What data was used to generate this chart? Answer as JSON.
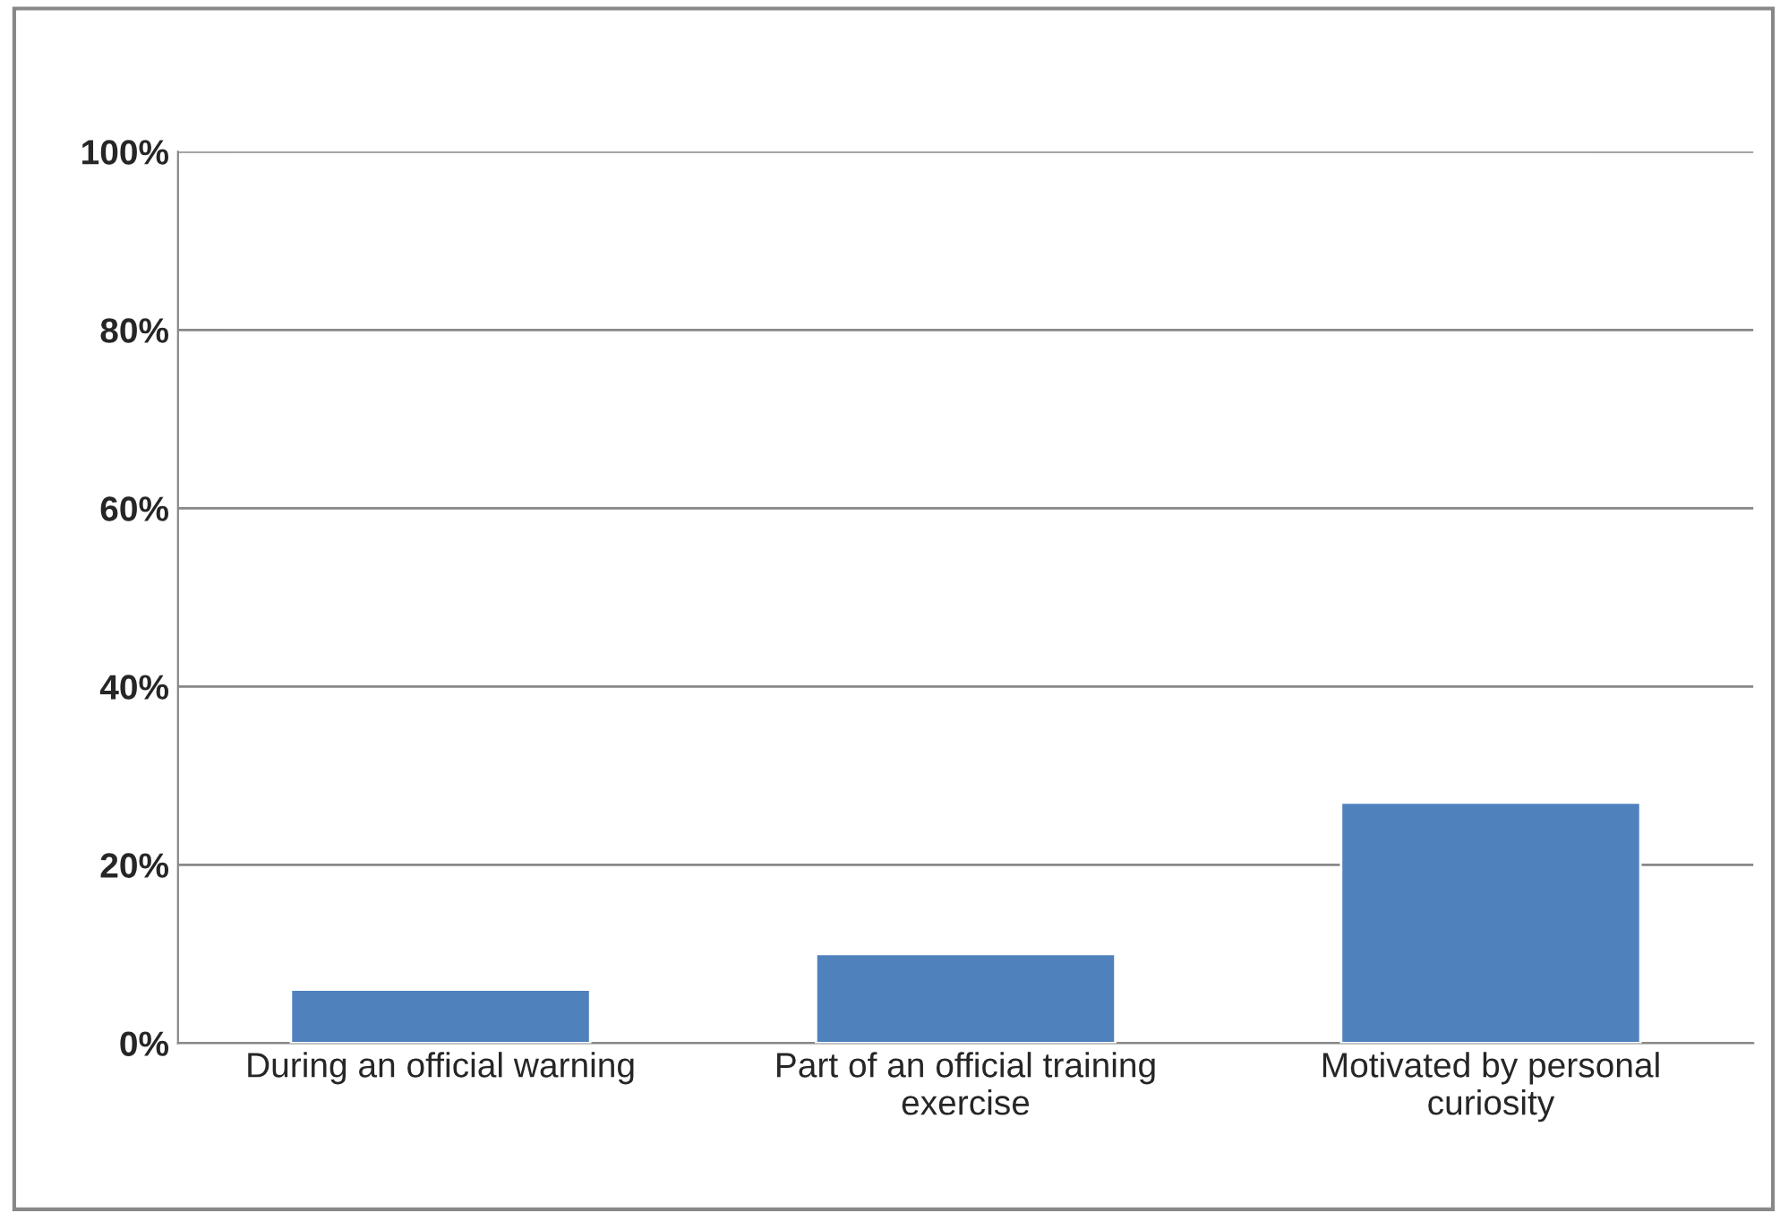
{
  "chart_data": {
    "type": "bar",
    "categories": [
      "During an official warning",
      "Part of an official training\nexercise",
      "Motivated by personal\ncuriosity"
    ],
    "values": [
      6,
      10,
      27
    ],
    "color": "#4f81bd",
    "ylim": [
      0,
      100
    ],
    "yticks": [
      {
        "value": 0,
        "label": "0%"
      },
      {
        "value": 20,
        "label": "20%"
      },
      {
        "value": 40,
        "label": "40%"
      },
      {
        "value": 60,
        "label": "60%"
      },
      {
        "value": 80,
        "label": "80%"
      },
      {
        "value": 100,
        "label": "100%"
      }
    ],
    "grid": "y",
    "legend": false
  }
}
